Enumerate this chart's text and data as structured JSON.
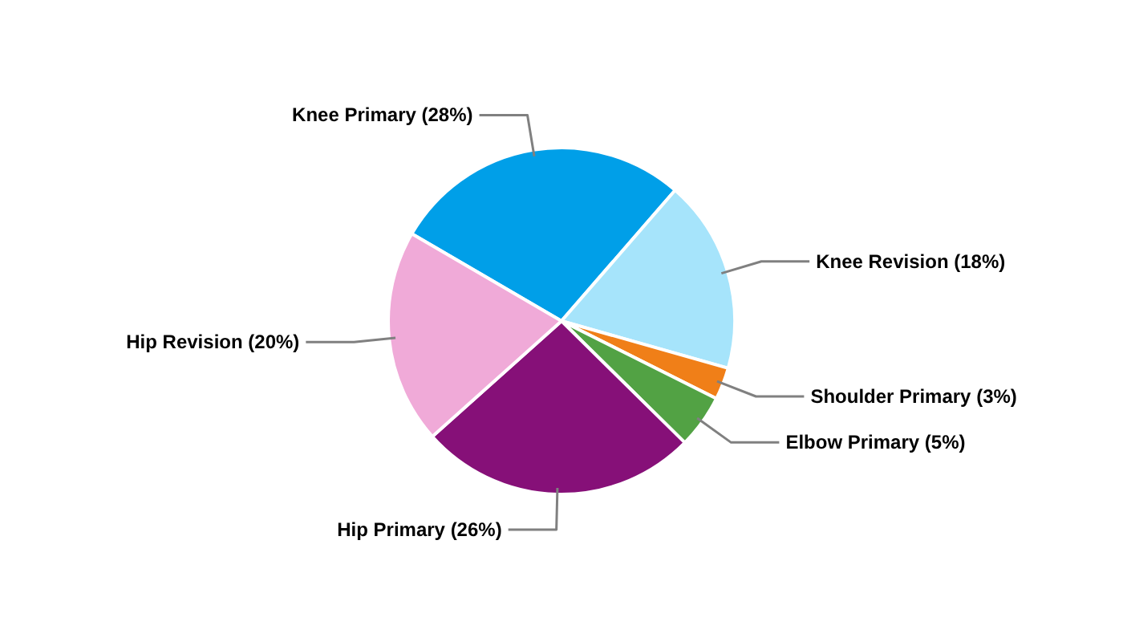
{
  "chart_data": {
    "type": "pie",
    "categories": [
      "Knee Primary (28%)",
      "Knee Revision (18%)",
      "Shoulder Primary (3%)",
      "Elbow Primary (5%)",
      "Hip Primary (26%)",
      "Hip Revision (20%)"
    ],
    "values": [
      28,
      18,
      3,
      5,
      26,
      20
    ],
    "colors": [
      "#009fe8",
      "#a6e4fb",
      "#f07f18",
      "#52a244",
      "#861078",
      "#f0aad8"
    ]
  }
}
